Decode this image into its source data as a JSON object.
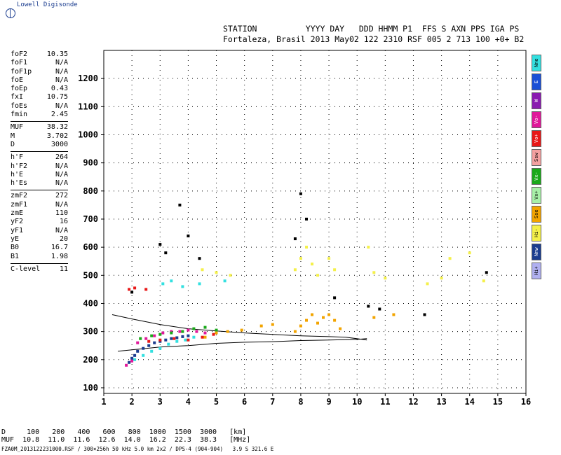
{
  "brand": "Lowell Digisonde",
  "header": {
    "line1": "STATION          YYYY DAY   DDD HHMM P1  FFS S AXN PPS IGA PS",
    "line2": "Fortaleza, Brasil 2013 May02 122 2310 RSF 005 2 713 100 +0+ B2"
  },
  "params": [
    {
      "k": "foF2",
      "v": "10.35"
    },
    {
      "k": "foF1",
      "v": "N/A"
    },
    {
      "k": "foF1p",
      "v": "N/A"
    },
    {
      "k": "foE",
      "v": "N/A"
    },
    {
      "k": "foEp",
      "v": "0.43"
    },
    {
      "k": "fxI",
      "v": "10.75"
    },
    {
      "k": "foEs",
      "v": "N/A"
    },
    {
      "k": "fmin",
      "v": "2.45"
    },
    {
      "k": "sep",
      "v": ""
    },
    {
      "k": "MUF",
      "v": "38.32"
    },
    {
      "k": "M",
      "v": "3.702"
    },
    {
      "k": "D",
      "v": "3000"
    },
    {
      "k": "sep",
      "v": ""
    },
    {
      "k": "h'F",
      "v": "264"
    },
    {
      "k": "h'F2",
      "v": "N/A"
    },
    {
      "k": "h'E",
      "v": "N/A"
    },
    {
      "k": "h'Es",
      "v": "N/A"
    },
    {
      "k": "sep",
      "v": ""
    },
    {
      "k": "zmF2",
      "v": "272"
    },
    {
      "k": "zmF1",
      "v": "N/A"
    },
    {
      "k": "zmE",
      "v": "110"
    },
    {
      "k": "yF2",
      "v": "16"
    },
    {
      "k": "yF1",
      "v": "N/A"
    },
    {
      "k": "yE",
      "v": "20"
    },
    {
      "k": "B0",
      "v": "16.7"
    },
    {
      "k": "B1",
      "v": "1.98"
    },
    {
      "k": "sep",
      "v": ""
    },
    {
      "k": "C-level",
      "v": "11"
    }
  ],
  "legend": [
    {
      "label": "Nne",
      "color": "#33e0e0"
    },
    {
      "label": "E",
      "color": "#1a4fd6"
    },
    {
      "label": "W",
      "color": "#8a1bb0"
    },
    {
      "label": "Vo-",
      "color": "#e0189a"
    },
    {
      "label": "Vo+",
      "color": "#e81818"
    },
    {
      "label": "Ssw",
      "color": "#f4a0a0"
    },
    {
      "label": "Vx-",
      "color": "#1aa81a"
    },
    {
      "label": "Vx+",
      "color": "#a8f0a8"
    },
    {
      "label": "Sse",
      "color": "#f2a400"
    },
    {
      "label": "Hi-",
      "color": "#f4f04a"
    },
    {
      "label": "Nnw",
      "color": "#1a3c8f"
    },
    {
      "label": "Hi+",
      "color": "#b0b0f0"
    }
  ],
  "muf_table": {
    "line1": "D     100   200   400   600   800  1000  1500  3000   [km]",
    "line2": "MUF  10.8  11.0  11.6  12.6  14.0  16.2  22.3  38.3   [MHz]"
  },
  "footer": "FZA0M_2013122231000.RSF / 300×256h 50 kHz 5.0 km 2x2 / DPS-4 (904-904)   3.9 S 321.6 E",
  "chart_data": {
    "type": "scatter",
    "title": "",
    "xlabel": "",
    "ylabel": "",
    "xlim": [
      1,
      16
    ],
    "ylim": [
      80,
      1300
    ],
    "x_ticks": [
      1,
      2,
      3,
      4,
      5,
      6,
      7,
      8,
      9,
      10,
      11,
      12,
      13,
      14,
      15,
      16
    ],
    "y_ticks": [
      100,
      200,
      300,
      400,
      500,
      600,
      700,
      800,
      900,
      1000,
      1100,
      1200
    ],
    "grid": true,
    "legend_position": "right",
    "series": [
      {
        "color": "#1a3c8f",
        "points": [
          [
            1.9,
            190
          ],
          [
            2.0,
            205
          ],
          [
            2.1,
            215
          ],
          [
            2.2,
            230
          ],
          [
            2.4,
            240
          ],
          [
            2.6,
            250
          ],
          [
            2.8,
            260
          ],
          [
            3.0,
            265
          ],
          [
            3.2,
            270
          ],
          [
            3.4,
            275
          ],
          [
            3.6,
            278
          ],
          [
            3.8,
            282
          ],
          [
            4.0,
            285
          ]
        ]
      },
      {
        "color": "#e0189a",
        "points": [
          [
            1.8,
            180
          ],
          [
            2.0,
            195
          ],
          [
            2.2,
            260
          ],
          [
            2.5,
            275
          ],
          [
            2.8,
            285
          ],
          [
            3.1,
            295
          ],
          [
            3.4,
            300
          ],
          [
            3.7,
            300
          ],
          [
            4.0,
            305
          ],
          [
            4.3,
            300
          ],
          [
            4.6,
            295
          ]
        ]
      },
      {
        "color": "#33e0e0",
        "points": [
          [
            2.1,
            200
          ],
          [
            2.4,
            215
          ],
          [
            2.7,
            230
          ],
          [
            3.0,
            240
          ],
          [
            3.3,
            255
          ],
          [
            3.6,
            265
          ],
          [
            3.9,
            270
          ],
          [
            4.2,
            280
          ],
          [
            3.1,
            470
          ],
          [
            3.4,
            480
          ],
          [
            3.8,
            460
          ],
          [
            4.4,
            470
          ],
          [
            5.3,
            480
          ]
        ]
      },
      {
        "color": "#1aa81a",
        "points": [
          [
            2.3,
            275
          ],
          [
            2.7,
            285
          ],
          [
            3.0,
            290
          ],
          [
            3.4,
            295
          ],
          [
            3.8,
            300
          ],
          [
            4.2,
            310
          ],
          [
            4.6,
            315
          ],
          [
            5.0,
            305
          ]
        ]
      },
      {
        "color": "#e81818",
        "points": [
          [
            2.6,
            265
          ],
          [
            3.0,
            270
          ],
          [
            3.5,
            275
          ],
          [
            4.0,
            270
          ],
          [
            4.5,
            280
          ],
          [
            4.9,
            290
          ]
        ]
      },
      {
        "color": "#f2a400",
        "points": [
          [
            4.6,
            280
          ],
          [
            5.0,
            295
          ],
          [
            5.4,
            300
          ],
          [
            5.9,
            305
          ],
          [
            6.6,
            320
          ],
          [
            7.0,
            325
          ],
          [
            7.8,
            300
          ],
          [
            8.0,
            320
          ],
          [
            8.2,
            340
          ],
          [
            8.4,
            360
          ],
          [
            8.6,
            330
          ],
          [
            8.8,
            350
          ],
          [
            9.0,
            360
          ],
          [
            9.2,
            340
          ],
          [
            9.4,
            310
          ],
          [
            10.6,
            350
          ],
          [
            11.3,
            360
          ]
        ]
      },
      {
        "color": "#f4f04a",
        "points": [
          [
            4.5,
            520
          ],
          [
            5.0,
            510
          ],
          [
            5.5,
            500
          ],
          [
            7.8,
            520
          ],
          [
            8.0,
            560
          ],
          [
            8.2,
            600
          ],
          [
            8.4,
            540
          ],
          [
            8.6,
            500
          ],
          [
            9.0,
            560
          ],
          [
            9.2,
            520
          ],
          [
            10.4,
            600
          ],
          [
            10.6,
            510
          ],
          [
            11.0,
            490
          ],
          [
            12.5,
            470
          ],
          [
            13.0,
            490
          ],
          [
            13.3,
            560
          ],
          [
            14.0,
            580
          ],
          [
            14.5,
            480
          ]
        ]
      },
      {
        "color": "#000000",
        "points": [
          [
            2.0,
            440
          ],
          [
            3.0,
            610
          ],
          [
            3.2,
            580
          ],
          [
            3.7,
            750
          ],
          [
            4.0,
            640
          ],
          [
            4.4,
            560
          ],
          [
            7.8,
            630
          ],
          [
            8.0,
            790
          ],
          [
            8.2,
            700
          ],
          [
            9.2,
            420
          ],
          [
            10.4,
            390
          ],
          [
            10.8,
            380
          ],
          [
            12.4,
            360
          ],
          [
            14.6,
            510
          ]
        ]
      },
      {
        "color": "#e81818",
        "points": [
          [
            1.9,
            450
          ],
          [
            2.1,
            455
          ],
          [
            2.5,
            450
          ]
        ]
      }
    ],
    "traces": [
      {
        "color": "#000000",
        "points": [
          [
            1.3,
            360
          ],
          [
            2.0,
            345
          ],
          [
            3.0,
            325
          ],
          [
            4.0,
            310
          ],
          [
            5.0,
            302
          ],
          [
            6.0,
            295
          ],
          [
            7.0,
            290
          ],
          [
            8.0,
            285
          ],
          [
            9.0,
            282
          ],
          [
            9.6,
            280
          ],
          [
            10.35,
            270
          ]
        ]
      },
      {
        "color": "#000000",
        "points": [
          [
            1.5,
            230
          ],
          [
            2.0,
            235
          ],
          [
            3.0,
            245
          ],
          [
            4.0,
            250
          ],
          [
            5.0,
            258
          ],
          [
            6.0,
            262
          ],
          [
            7.0,
            264
          ],
          [
            8.0,
            268
          ],
          [
            9.0,
            270
          ],
          [
            10.0,
            272
          ],
          [
            10.35,
            275
          ]
        ]
      }
    ]
  }
}
